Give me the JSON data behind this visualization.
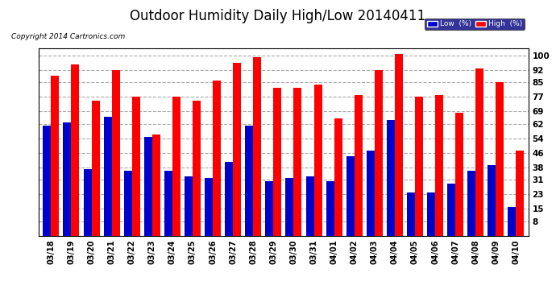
{
  "title": "Outdoor Humidity Daily High/Low 20140411",
  "copyright": "Copyright 2014 Cartronics.com",
  "legend_low": "Low  (%)",
  "legend_high": "High  (%)",
  "dates": [
    "03/18",
    "03/19",
    "03/20",
    "03/21",
    "03/22",
    "03/23",
    "03/24",
    "03/25",
    "03/26",
    "03/27",
    "03/28",
    "03/29",
    "03/30",
    "03/31",
    "04/01",
    "04/02",
    "04/03",
    "04/04",
    "04/05",
    "04/06",
    "04/07",
    "04/08",
    "04/09",
    "04/10"
  ],
  "high": [
    89,
    95,
    75,
    92,
    77,
    56,
    77,
    75,
    86,
    96,
    99,
    82,
    82,
    84,
    65,
    78,
    92,
    101,
    77,
    78,
    68,
    93,
    85,
    47
  ],
  "low": [
    61,
    63,
    37,
    66,
    36,
    55,
    36,
    33,
    32,
    41,
    61,
    30,
    32,
    33,
    30,
    44,
    47,
    64,
    24,
    24,
    29,
    36,
    39,
    16
  ],
  "bar_color_low": "#0000cc",
  "bar_color_high": "#ff0000",
  "bg_color": "#ffffff",
  "plot_bg_color": "#ffffff",
  "grid_color": "#aaaaaa",
  "yticks": [
    8,
    15,
    23,
    31,
    38,
    46,
    54,
    62,
    69,
    77,
    85,
    92,
    100
  ],
  "ylim": [
    0,
    104
  ],
  "title_fontsize": 12,
  "bar_width": 0.4
}
